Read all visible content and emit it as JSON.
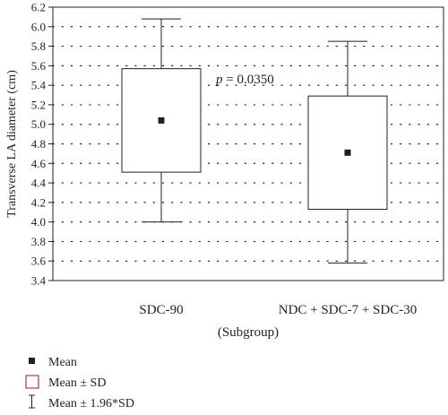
{
  "chart_data": {
    "type": "box",
    "ylabel": "Transverse LA diameter (cm)",
    "xlabel": "(Subgroup)",
    "ylim": [
      3.4,
      6.2
    ],
    "yticks": [
      3.4,
      3.6,
      3.8,
      4.0,
      4.2,
      4.4,
      4.6,
      4.8,
      5.0,
      5.2,
      5.4,
      5.6,
      5.8,
      6.0,
      6.2
    ],
    "ytick_labels": [
      "3.4",
      "3.6",
      "3.8",
      "4.0",
      "4.2",
      "4.4",
      "4.6",
      "4.8",
      "5.0",
      "5.2",
      "5.4",
      "5.6",
      "5.8",
      "6.0",
      "6.2"
    ],
    "grid": true,
    "categories": [
      "SDC-90",
      "NDC + SDC-7 + SDC-30"
    ],
    "groups": [
      {
        "category": "SDC-90",
        "mean": 5.04,
        "box_low": 4.51,
        "box_high": 5.57,
        "whisker_low": 4.0,
        "whisker_high": 6.08
      },
      {
        "category": "NDC + SDC-7 + SDC-30",
        "mean": 4.71,
        "box_low": 4.13,
        "box_high": 5.29,
        "whisker_low": 3.58,
        "whisker_high": 5.85
      }
    ],
    "annotation": {
      "prefix": "p",
      "text": " = 0.0350"
    },
    "legend": [
      {
        "symbol": "square",
        "label": "Mean"
      },
      {
        "symbol": "box",
        "label": "Mean ± SD"
      },
      {
        "symbol": "whisker",
        "label": "Mean ± 1.96*SD"
      }
    ]
  },
  "colors": {
    "ink": "#231f20",
    "legend_box": "#8b1a1a",
    "grid": "#231f20"
  }
}
